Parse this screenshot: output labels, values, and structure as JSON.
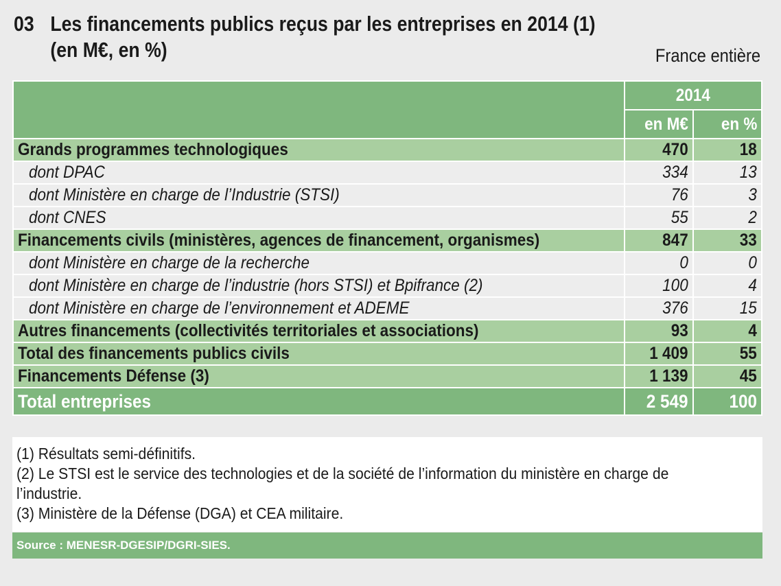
{
  "title": {
    "number": "03",
    "line1": "Les financements publics reçus par les entreprises en 2014 (1)",
    "line2": "(en M€, en %)",
    "scope": "France entière"
  },
  "table": {
    "year": "2014",
    "col_meur": "en M€",
    "col_pct": "en %",
    "rows": [
      {
        "type": "cat",
        "label": "Grands programmes technologiques",
        "meur": "470",
        "pct": "18"
      },
      {
        "type": "sub",
        "label": "dont DPAC",
        "meur": "334",
        "pct": "13"
      },
      {
        "type": "sub",
        "label": "dont Ministère en charge de l’Industrie (STSI)",
        "meur": "76",
        "pct": "3"
      },
      {
        "type": "sub",
        "label": "dont CNES",
        "meur": "55",
        "pct": "2"
      },
      {
        "type": "cat",
        "label": "Financements civils (ministères, agences de financement, organismes)",
        "meur": "847",
        "pct": "33"
      },
      {
        "type": "sub",
        "label": "dont Ministère en charge de la recherche",
        "meur": "0",
        "pct": "0"
      },
      {
        "type": "sub",
        "label": "dont Ministère en charge de l’industrie (hors STSI) et Bpifrance (2)",
        "meur": "100",
        "pct": "4"
      },
      {
        "type": "sub",
        "label": "dont Ministère en charge de l’environnement et ADEME",
        "meur": "376",
        "pct": "15"
      },
      {
        "type": "cat",
        "label": "Autres financements (collectivités territoriales et associations)",
        "meur": "93",
        "pct": "4"
      },
      {
        "type": "cat",
        "label": "Total des financements publics civils",
        "meur": "1 409",
        "pct": "55"
      },
      {
        "type": "cat",
        "label": "Financements Défense (3)",
        "meur": "1 139",
        "pct": "45"
      },
      {
        "type": "tot",
        "label": "Total entreprises",
        "meur": "2 549",
        "pct": "100"
      }
    ]
  },
  "notes": [
    "(1) Résultats semi-définitifs.",
    "(2) Le STSI est le service des technologies et de la société de l’information du ministère en charge de",
    "l’industrie.",
    "(3) Ministère de la Défense (DGA) et CEA militaire."
  ],
  "source": "Source : MENESR-DGESIP/DGRI-SIES."
}
